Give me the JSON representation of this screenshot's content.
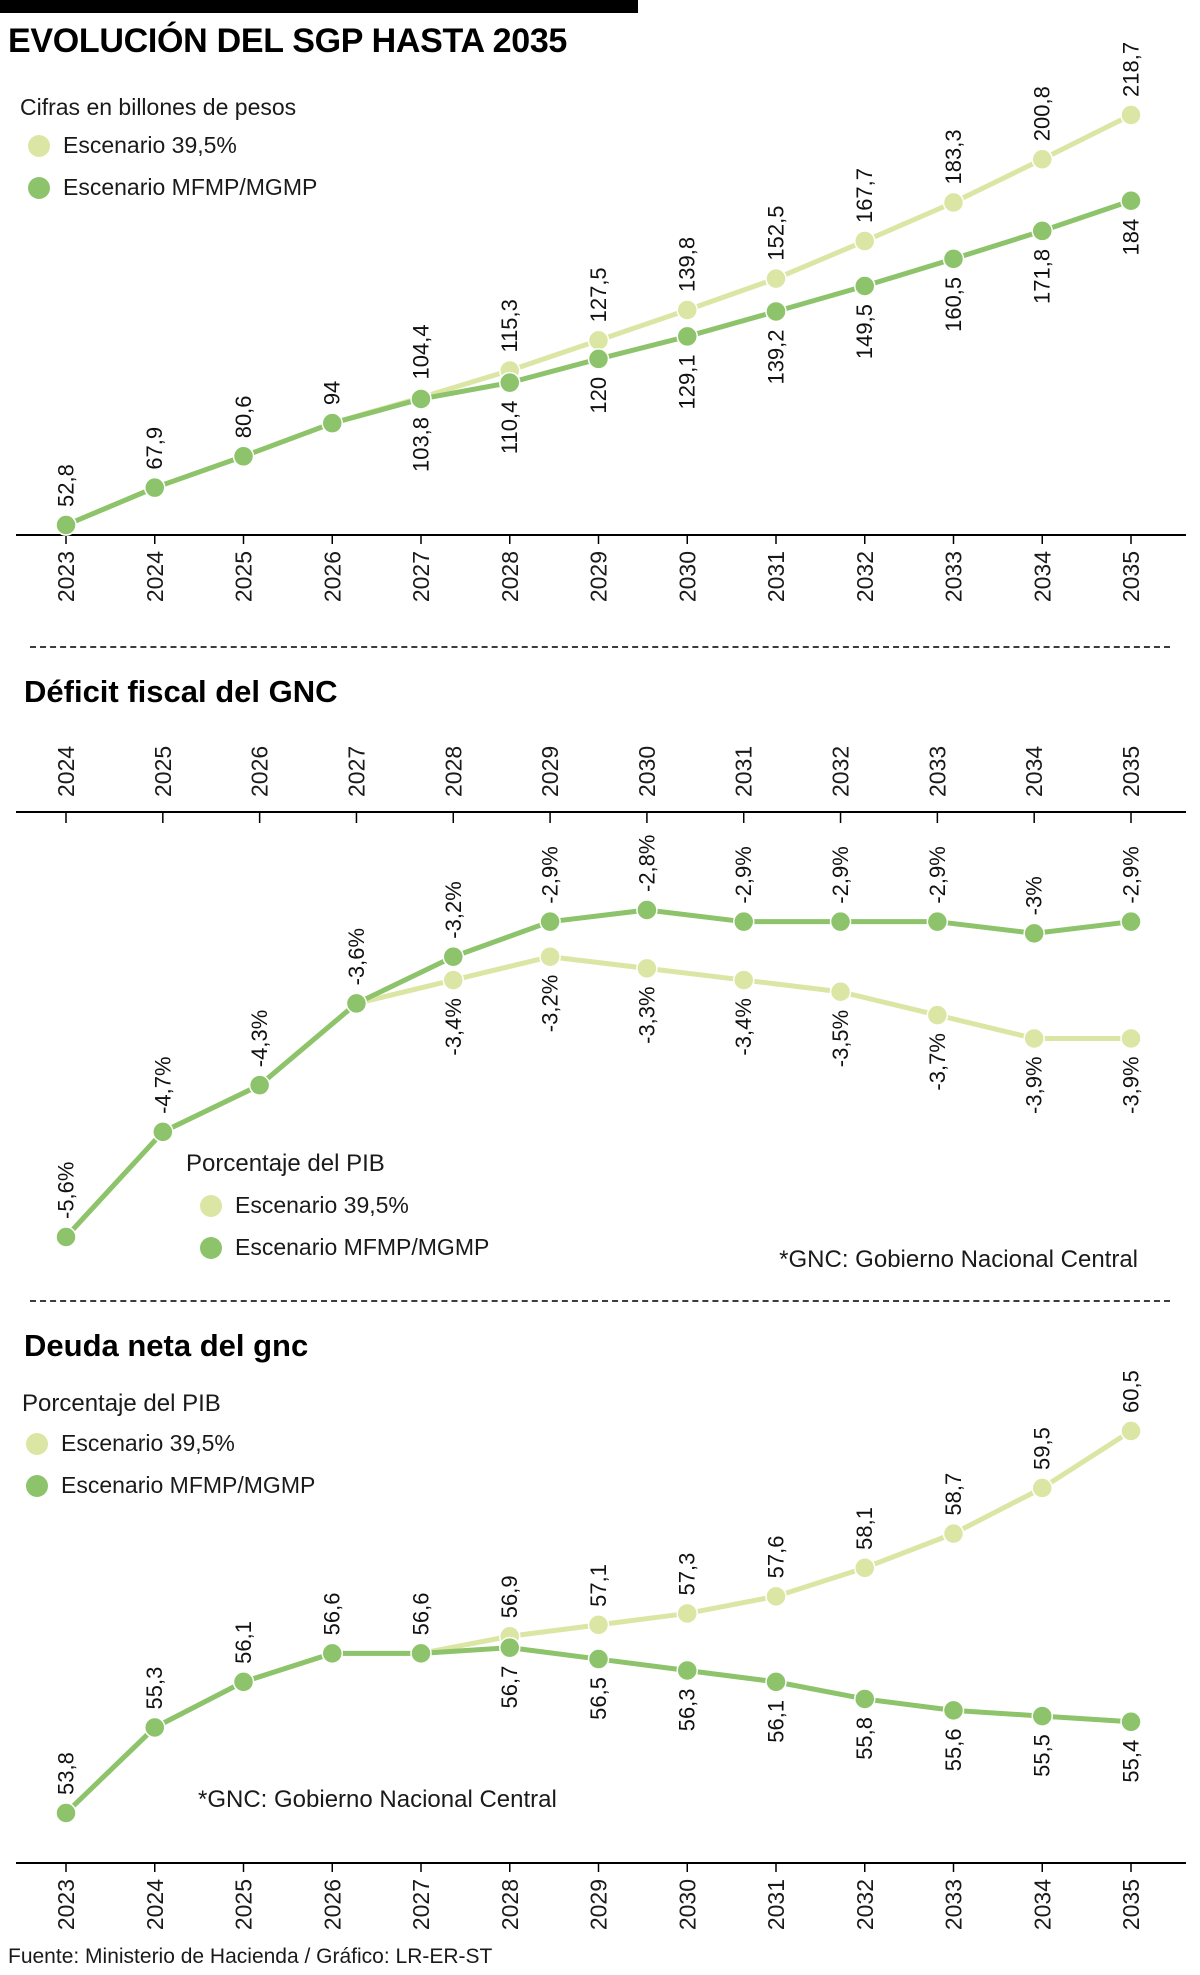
{
  "page": {
    "footer": "Fuente: Ministerio de Hacienda / Gráfico: LR-ER-ST"
  },
  "colors": {
    "light": "#dbe6a4",
    "dark": "#8dc36a"
  },
  "chart_data": [
    {
      "id": "sgp",
      "type": "line",
      "title": "EVOLUCIÓN DEL SGP HASTA 2035",
      "subtitle": "Cifras en billones de pesos",
      "legend": [
        {
          "label": "Escenario 39,5%",
          "color": "light"
        },
        {
          "label": "Escenario MFMP/MGMP",
          "color": "dark"
        }
      ],
      "categories": [
        "2023",
        "2024",
        "2025",
        "2026",
        "2027",
        "2028",
        "2029",
        "2030",
        "2031",
        "2032",
        "2033",
        "2034",
        "2035"
      ],
      "ylim": [
        52.8,
        218.7
      ],
      "series": [
        {
          "name": "Escenario 39,5%",
          "color": "light",
          "label_side": "above",
          "values": [
            52.8,
            67.9,
            80.6,
            94,
            104.4,
            115.3,
            127.5,
            139.8,
            152.5,
            167.7,
            183.3,
            200.8,
            218.7
          ],
          "labels": [
            "52,8",
            "67,9",
            "80,6",
            "94",
            "104,4",
            "115,3",
            "127,5",
            "139,8",
            "152,5",
            "167,7",
            "183,3",
            "200,8",
            "218,7"
          ]
        },
        {
          "name": "Escenario MFMP/MGMP",
          "color": "dark",
          "label_side": "below",
          "values": [
            52.8,
            67.9,
            80.6,
            94,
            103.8,
            110.4,
            120,
            129.1,
            139.2,
            149.5,
            160.5,
            171.8,
            184
          ],
          "labels": [
            "",
            "",
            "",
            "",
            "103,8",
            "110,4",
            "120",
            "129,1",
            "139,2",
            "149,5",
            "160,5",
            "171,8",
            "184"
          ]
        }
      ]
    },
    {
      "id": "deficit",
      "type": "line",
      "title": "Déficit fiscal del GNC",
      "legend_title": "Porcentaje del PIB",
      "note": "*GNC: Gobierno Nacional Central",
      "legend": [
        {
          "label": "Escenario 39,5%",
          "color": "light"
        },
        {
          "label": "Escenario MFMP/MGMP",
          "color": "dark"
        }
      ],
      "categories": [
        "2024",
        "2025",
        "2026",
        "2027",
        "2028",
        "2029",
        "2030",
        "2031",
        "2032",
        "2033",
        "2034",
        "2035"
      ],
      "ylim": [
        -5.6,
        -2.8
      ],
      "series": [
        {
          "name": "Escenario 39,5%",
          "color": "light",
          "label_side": "below",
          "values": [
            -5.6,
            -4.7,
            -4.3,
            -3.6,
            -3.4,
            -3.2,
            -3.3,
            -3.4,
            -3.5,
            -3.7,
            -3.9,
            -3.9
          ],
          "labels": [
            "",
            "",
            "",
            "",
            "-3,4%",
            "-3,2%",
            "-3,3%",
            "-3,4%",
            "-3,5%",
            "-3,7%",
            "-3,9%",
            "-3,9%"
          ]
        },
        {
          "name": "Escenario MFMP/MGMP",
          "color": "dark",
          "label_side": "above",
          "values": [
            -5.6,
            -4.7,
            -4.3,
            -3.6,
            -3.2,
            -2.9,
            -2.8,
            -2.9,
            -2.9,
            -2.9,
            -3.0,
            -2.9
          ],
          "labels": [
            "-5,6%",
            "-4,7%",
            "-4,3%",
            "-3,6%",
            "-3,2%",
            "-2,9%",
            "-2,8%",
            "-2,9%",
            "-2,9%",
            "-2,9%",
            "-3%",
            "-2,9%"
          ]
        }
      ]
    },
    {
      "id": "deuda",
      "type": "line",
      "title": "Deuda neta del gnc",
      "legend_title": "Porcentaje del PIB",
      "note": "*GNC: Gobierno Nacional Central",
      "legend": [
        {
          "label": "Escenario 39,5%",
          "color": "light"
        },
        {
          "label": "Escenario MFMP/MGMP",
          "color": "dark"
        }
      ],
      "categories": [
        "2023",
        "2024",
        "2025",
        "2026",
        "2027",
        "2028",
        "2029",
        "2030",
        "2031",
        "2032",
        "2033",
        "2034",
        "2035"
      ],
      "ylim": [
        53.8,
        60.5
      ],
      "series": [
        {
          "name": "Escenario 39,5%",
          "color": "light",
          "label_side": "above",
          "values": [
            53.8,
            55.3,
            56.1,
            56.6,
            56.6,
            56.9,
            57.1,
            57.3,
            57.6,
            58.1,
            58.7,
            59.5,
            60.5
          ],
          "labels": [
            "53,8",
            "55,3",
            "56,1",
            "56,6",
            "56,6",
            "56,9",
            "57,1",
            "57,3",
            "57,6",
            "58,1",
            "58,7",
            "59,5",
            "60,5"
          ]
        },
        {
          "name": "Escenario MFMP/MGMP",
          "color": "dark",
          "label_side": "below",
          "values": [
            53.8,
            55.3,
            56.1,
            56.6,
            56.6,
            56.7,
            56.5,
            56.3,
            56.1,
            55.8,
            55.6,
            55.5,
            55.4
          ],
          "labels": [
            "",
            "",
            "",
            "",
            "",
            "56,7",
            "56,5",
            "56,3",
            "56,1",
            "55,8",
            "55,6",
            "55,5",
            "55,4"
          ]
        }
      ]
    }
  ]
}
